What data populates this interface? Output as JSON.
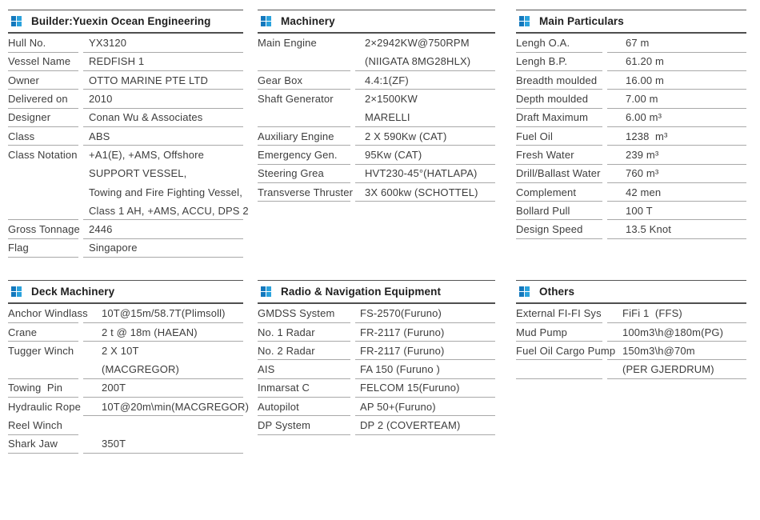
{
  "colors": {
    "icon_blue_dark": "#1378bd",
    "icon_blue_light": "#2aa2dd",
    "rule_gray": "#a9a9a9",
    "header_rule": "#4f4f4f",
    "text": "#3d3d3d"
  },
  "sections": [
    {
      "id": "builder",
      "title": "Builder:Yuexin Ocean Engineering",
      "icon": "grid-squares-icon",
      "lines": [
        {
          "l": "Hull No.",
          "v": "YX3120",
          "lb": true,
          "vb": true
        },
        {
          "l": "Vessel Name",
          "v": "REDFISH 1",
          "lb": true,
          "vb": true
        },
        {
          "l": "Owner",
          "v": "OTTO MARINE PTE LTD",
          "lb": true,
          "vb": true
        },
        {
          "l": "Delivered on",
          "v": "2010",
          "lb": true,
          "vb": true
        },
        {
          "l": "Designer",
          "v": "Conan Wu & Associates",
          "lb": true,
          "vb": true
        },
        {
          "l": "Class",
          "v": "ABS",
          "lb": true,
          "vb": true
        },
        {
          "l": "Class Notation",
          "v": "+A1(E), +AMS, Offshore",
          "lb": false,
          "vb": false
        },
        {
          "l": "",
          "v": "SUPPORT VESSEL,",
          "lb": false,
          "vb": false
        },
        {
          "l": "",
          "v": "Towing and Fire Fighting Vessel,",
          "lb": false,
          "vb": false
        },
        {
          "l": "",
          "v": "Class 1 AH, +AMS, ACCU, DPS 2",
          "lb": true,
          "vb": true
        },
        {
          "l": "Gross Tonnage",
          "v": "2446",
          "lb": true,
          "vb": true
        },
        {
          "l": "Flag",
          "v": "Singapore",
          "lb": true,
          "vb": true
        }
      ]
    },
    {
      "id": "machinery",
      "title": "Machinery",
      "icon": "grid-squares-icon",
      "lines": [
        {
          "l": "Main Engine",
          "v": "2×2942KW@750RPM",
          "lb": false,
          "vb": false
        },
        {
          "l": "",
          "v": "(NIIGATA 8MG28HLX)",
          "lb": true,
          "vb": true
        },
        {
          "l": "Gear Box",
          "v": "4.4:1(ZF)",
          "lb": true,
          "vb": true
        },
        {
          "l": "Shaft Generator",
          "v": "2×1500KW",
          "lb": false,
          "vb": false
        },
        {
          "l": "",
          "v": "MARELLI",
          "lb": true,
          "vb": true
        },
        {
          "l": "Auxiliary Engine",
          "v": "2 X 590Kw (CAT)",
          "lb": true,
          "vb": true
        },
        {
          "l": "Emergency Gen.",
          "v": "95Kw (CAT)",
          "lb": true,
          "vb": true
        },
        {
          "l": "Steering Grea",
          "v": "HVT230-45°(HATLAPA)",
          "lb": true,
          "vb": true
        },
        {
          "l": "Transverse Thruster",
          "v": "3X 600kw (SCHOTTEL)",
          "lb": true,
          "vb": true
        }
      ]
    },
    {
      "id": "main-particulars",
      "title": "Main Particulars",
      "icon": "grid-squares-icon",
      "lines": [
        {
          "l": "Lengh O.A.",
          "v": "67 m",
          "lb": true,
          "vb": true
        },
        {
          "l": "Lengh B.P.",
          "v": "61.20 m",
          "lb": true,
          "vb": true
        },
        {
          "l": "Breadth moulded",
          "v": "16.00 m",
          "lb": true,
          "vb": true
        },
        {
          "l": "Depth moulded",
          "v": "7.00 m",
          "lb": true,
          "vb": true
        },
        {
          "l": "Draft Maximum",
          "v": "6.00 m³",
          "lb": true,
          "vb": true
        },
        {
          "l": "Fuel Oil",
          "v": "1238  m³",
          "lb": true,
          "vb": true
        },
        {
          "l": "Fresh Water",
          "v": "239 m³",
          "lb": true,
          "vb": true
        },
        {
          "l": "Drill/Ballast Water",
          "v": "760 m³",
          "lb": true,
          "vb": true
        },
        {
          "l": "Complement",
          "v": "42 men",
          "lb": true,
          "vb": true
        },
        {
          "l": "Bollard Pull",
          "v": "100 T",
          "lb": true,
          "vb": true
        },
        {
          "l": "Design Speed",
          "v": "13.5 Knot",
          "lb": true,
          "vb": true
        }
      ]
    },
    {
      "id": "deck-machinery",
      "title": "Deck Machinery",
      "icon": "grid-squares-icon",
      "lines": [
        {
          "l": "Anchor Windlass",
          "v": "10T@15m/58.7T(Plimsoll)",
          "lb": true,
          "vb": true
        },
        {
          "l": "Crane",
          "v": "2 t @ 18m (HAEAN)",
          "lb": true,
          "vb": true
        },
        {
          "l": "Tugger Winch",
          "v": "2 X 10T",
          "lb": false,
          "vb": false
        },
        {
          "l": "",
          "v": "(MACGREGOR)",
          "lb": true,
          "vb": true
        },
        {
          "l": "Towing  Pin",
          "v": "200T",
          "lb": true,
          "vb": true
        },
        {
          "l": "Hydraulic Rope",
          "v": "10T@20m\\min(MACGREGOR)",
          "lb": false,
          "vb": true
        },
        {
          "l": "Reel Winch",
          "v": "",
          "lb": true,
          "vb": false
        },
        {
          "l": "Shark Jaw",
          "v": "350T",
          "lb": true,
          "vb": true
        }
      ]
    },
    {
      "id": "radio-navigation",
      "title": "Radio & Navigation Equipment",
      "icon": "grid-squares-icon",
      "lines": [
        {
          "l": "GMDSS System",
          "v": "FS-2570(Furuno)",
          "lb": true,
          "vb": true
        },
        {
          "l": "No. 1 Radar",
          "v": "FR-2117 (Furuno)",
          "lb": true,
          "vb": true
        },
        {
          "l": "No. 2 Radar",
          "v": "FR-2117 (Furuno)",
          "lb": true,
          "vb": true
        },
        {
          "l": "AIS",
          "v": "FA 150 (Furuno )",
          "lb": true,
          "vb": true
        },
        {
          "l": "Inmarsat C",
          "v": "FELCOM 15(Furuno)",
          "lb": true,
          "vb": true
        },
        {
          "l": "Autopilot",
          "v": "AP 50+(Furuno)",
          "lb": true,
          "vb": true
        },
        {
          "l": "DP System",
          "v": "DP 2 (COVERTEAM)",
          "lb": true,
          "vb": true
        }
      ]
    },
    {
      "id": "others",
      "title": "Others",
      "icon": "grid-squares-icon",
      "lines": [
        {
          "l": "External FI-FI Sys",
          "v": "FiFi 1  (FFS)",
          "lb": true,
          "vb": true
        },
        {
          "l": "Mud Pump",
          "v": "100m3\\h@180m(PG)",
          "lb": true,
          "vb": true
        },
        {
          "l": "Fuel Oil Cargo Pump",
          "v": "150m3\\h@70m",
          "lb": true,
          "vb": true
        },
        {
          "l": "",
          "v": "(PER GJERDRUM)",
          "lb": true,
          "vb": true
        }
      ]
    }
  ]
}
